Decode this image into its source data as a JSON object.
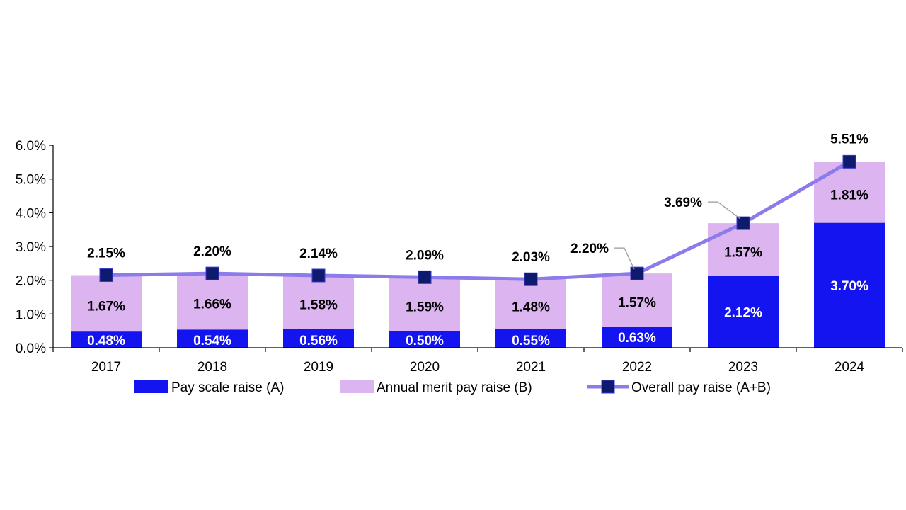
{
  "chart_data": {
    "type": "bar",
    "stacked": true,
    "categories": [
      "2017",
      "2018",
      "2019",
      "2020",
      "2021",
      "2022",
      "2023",
      "2024"
    ],
    "ylim": [
      0,
      6
    ],
    "yticks": [
      "0.0%",
      "1.0%",
      "2.0%",
      "3.0%",
      "4.0%",
      "5.0%",
      "6.0%"
    ],
    "ytick_values": [
      0,
      1,
      2,
      3,
      4,
      5,
      6
    ],
    "series": [
      {
        "name": "Pay scale raise (A)",
        "kind": "bar",
        "color": "#1414f0",
        "values": [
          0.48,
          0.54,
          0.56,
          0.5,
          0.55,
          0.63,
          2.12,
          3.7
        ],
        "labels": [
          "0.48%",
          "0.54%",
          "0.56%",
          "0.50%",
          "0.55%",
          "0.63%",
          "2.12%",
          "3.70%"
        ]
      },
      {
        "name": "Annual merit pay raise (B)",
        "kind": "bar",
        "color": "#dcb4f0",
        "values": [
          1.67,
          1.66,
          1.58,
          1.59,
          1.48,
          1.57,
          1.57,
          1.81
        ],
        "labels": [
          "1.67%",
          "1.66%",
          "1.58%",
          "1.59%",
          "1.48%",
          "1.57%",
          "1.57%",
          "1.81%"
        ]
      },
      {
        "name": "Overall pay raise (A+B)",
        "kind": "line",
        "color": "#8c7ceb",
        "marker_color": "#0d1a6e",
        "values": [
          2.15,
          2.2,
          2.14,
          2.09,
          2.03,
          2.2,
          3.69,
          5.51
        ],
        "labels": [
          "2.15%",
          "2.20%",
          "2.14%",
          "2.09%",
          "2.03%",
          "2.20%",
          "3.69%",
          "5.51%"
        ]
      }
    ],
    "legend_position": "bottom",
    "grid": false
  }
}
